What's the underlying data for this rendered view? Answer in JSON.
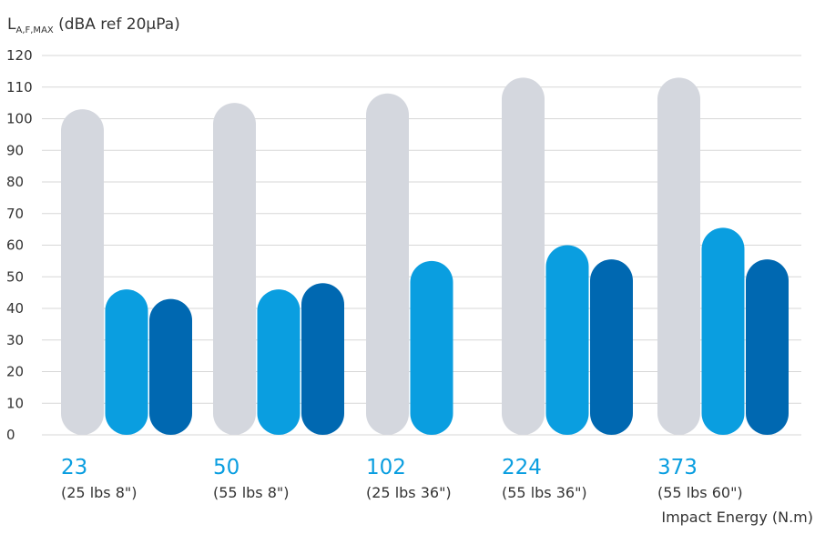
{
  "chart_data": {
    "type": "bar",
    "ylabel": {
      "main": "L",
      "sub": "A,F,MAX",
      "rest": " (dBA ref 20µPa)"
    },
    "xlabel": "Impact Energy (N.m)",
    "ylim": [
      0,
      120
    ],
    "yticks": [
      0,
      10,
      20,
      30,
      40,
      50,
      60,
      70,
      80,
      90,
      100,
      110,
      120
    ],
    "grid": true,
    "categories": [
      "23",
      "50",
      "102",
      "224",
      "373"
    ],
    "category_notes": [
      "(25 lbs 8\")",
      "(55 lbs 8\")",
      "(25 lbs 36\")",
      "(55 lbs 36\")",
      "(55 lbs 60\")"
    ],
    "series": [
      {
        "values": [
          103,
          105,
          108,
          113,
          113
        ],
        "color": "#d4d7de"
      },
      {
        "values": [
          46,
          46,
          55,
          60,
          65.5
        ],
        "color": "#0a9ee0"
      },
      {
        "values": [
          43,
          48,
          null,
          55.5,
          55.5
        ],
        "color": "#0068b1"
      }
    ]
  }
}
